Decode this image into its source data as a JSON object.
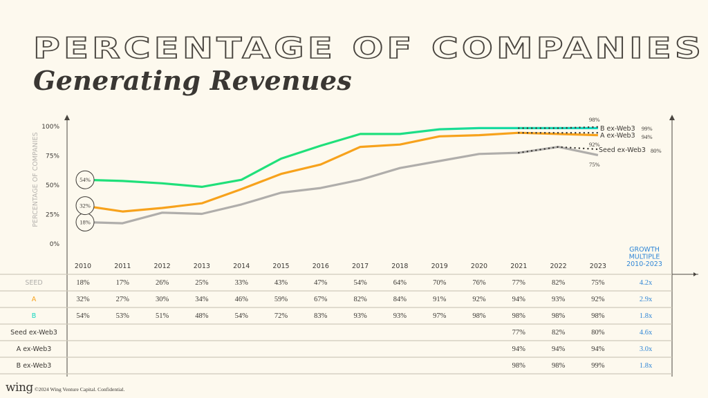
{
  "title": {
    "line1": "PERCENTAGE OF COMPANIES",
    "line2": "Generating Revenues"
  },
  "footer": {
    "logo": "wing",
    "text": "©2024 Wing Venture Capital. Confidential."
  },
  "colors": {
    "seed": "#b0aeab",
    "a": "#f7a21c",
    "b_start": "#1fe07a",
    "b_end": "#12d6c0",
    "growth": "#2f86d6",
    "axis": "#4a4640",
    "grid": "#cfc9bb",
    "ylabel": "#b8b5b0"
  },
  "chart_data": {
    "type": "line",
    "title": "Percentage of Companies Generating Revenues",
    "xlabel": "",
    "ylabel": "PERCENTAGE OF COMPANIES",
    "ylim": [
      0,
      100
    ],
    "yticks": [
      "0%",
      "25%",
      "50%",
      "75%",
      "100%"
    ],
    "ytick_values": [
      0,
      25,
      50,
      75,
      100
    ],
    "categories": [
      "2010",
      "2011",
      "2012",
      "2013",
      "2014",
      "2015",
      "2016",
      "2017",
      "2018",
      "2019",
      "2020",
      "2021",
      "2022",
      "2023"
    ],
    "series": [
      {
        "name": "SEED",
        "key": "seed",
        "values": [
          18,
          17,
          26,
          25,
          33,
          43,
          47,
          54,
          64,
          70,
          76,
          77,
          82,
          75
        ],
        "growth": "4.2x",
        "start_label": "18%",
        "end_label": "75%"
      },
      {
        "name": "A",
        "key": "a",
        "values": [
          32,
          27,
          30,
          34,
          46,
          59,
          67,
          82,
          84,
          91,
          92,
          94,
          93,
          92
        ],
        "growth": "2.9x",
        "start_label": "32%",
        "end_label": "92%"
      },
      {
        "name": "B",
        "key": "b",
        "values": [
          54,
          53,
          51,
          48,
          54,
          72,
          83,
          93,
          93,
          97,
          98,
          98,
          98,
          98
        ],
        "growth": "1.8x",
        "start_label": "54%",
        "end_label": "98%"
      },
      {
        "name": "Seed ex-Web3",
        "key": "seed_ex",
        "dotted": true,
        "values": [
          null,
          null,
          null,
          null,
          null,
          null,
          null,
          null,
          null,
          null,
          null,
          77,
          82,
          80
        ],
        "growth": "4.6x",
        "end_label": "80%"
      },
      {
        "name": "A ex-Web3",
        "key": "a_ex",
        "dotted": true,
        "values": [
          null,
          null,
          null,
          null,
          null,
          null,
          null,
          null,
          null,
          null,
          null,
          94,
          94,
          94
        ],
        "growth": "3.0x",
        "end_label": "94%"
      },
      {
        "name": "B ex-Web3",
        "key": "b_ex",
        "dotted": true,
        "values": [
          null,
          null,
          null,
          null,
          null,
          null,
          null,
          null,
          null,
          null,
          null,
          98,
          98,
          99
        ],
        "growth": "1.8x",
        "end_label": "99%"
      }
    ],
    "growth_header": [
      "GROWTH",
      "MULTIPLE",
      "2010-2023"
    ],
    "legend": "inline-right"
  }
}
